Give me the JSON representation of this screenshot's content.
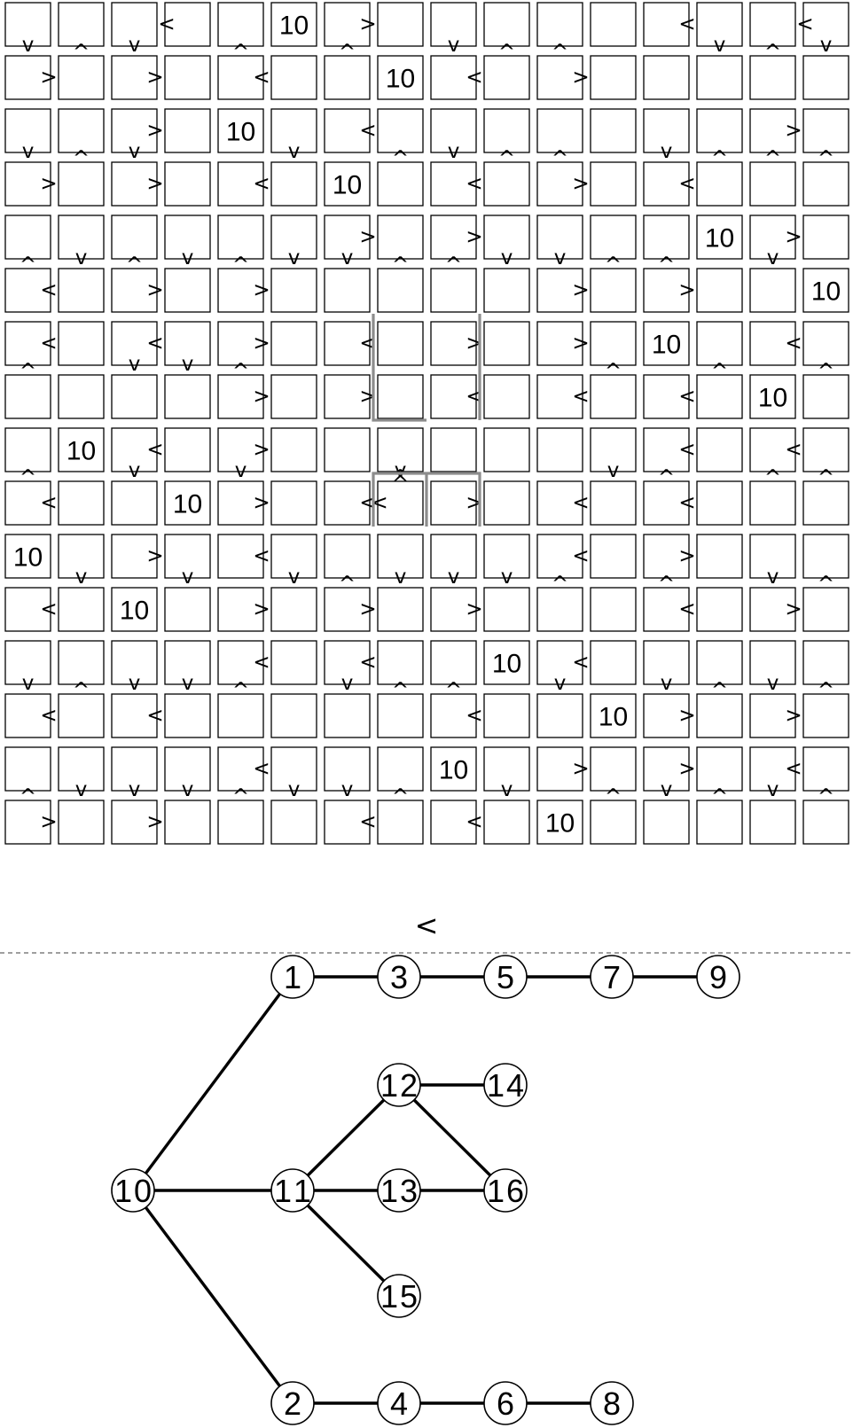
{
  "grid": {
    "rows": 16,
    "cols": 16,
    "cell_label": "10",
    "labeled_cells": [
      [
        0,
        5
      ],
      [
        1,
        7
      ],
      [
        2,
        4
      ],
      [
        3,
        6
      ],
      [
        4,
        13
      ],
      [
        5,
        15
      ],
      [
        6,
        12
      ],
      [
        7,
        14
      ],
      [
        8,
        1
      ],
      [
        9,
        3
      ],
      [
        10,
        0
      ],
      [
        11,
        2
      ],
      [
        12,
        9
      ],
      [
        13,
        11
      ],
      [
        14,
        8
      ],
      [
        15,
        10
      ]
    ],
    "arrows": [
      {
        "row": 0,
        "col": 0,
        "glyph": "v"
      },
      {
        "row": 1,
        "col": 0,
        "glyph": ">"
      },
      {
        "row": 0,
        "col": 1,
        "glyph": "^"
      },
      {
        "row": 0,
        "col": 2,
        "glyph": "v"
      },
      {
        "row": 1,
        "col": 2,
        "glyph": ">"
      },
      {
        "row": 0,
        "col": 3,
        "glyph": "<"
      },
      {
        "row": 0,
        "col": 4,
        "glyph": "^"
      },
      {
        "row": 1,
        "col": 4,
        "glyph": "<"
      },
      {
        "row": 0,
        "col": 6,
        "glyph": "^"
      },
      {
        "row": 0,
        "col": 6,
        "glyph": ">"
      },
      {
        "row": 0,
        "col": 8,
        "glyph": "v"
      },
      {
        "row": 1,
        "col": 8,
        "glyph": "<"
      },
      {
        "row": 0,
        "col": 9,
        "glyph": "^"
      },
      {
        "row": 0,
        "col": 10,
        "glyph": "^"
      },
      {
        "row": 1,
        "col": 10,
        "glyph": ">"
      },
      {
        "row": 0,
        "col": 12,
        "glyph": "<"
      },
      {
        "row": 0,
        "col": 13,
        "glyph": "v"
      },
      {
        "row": 0,
        "col": 14,
        "glyph": "^"
      },
      {
        "row": 0,
        "col": 15,
        "glyph": "<"
      },
      {
        "row": 0,
        "col": 15,
        "glyph": "v"
      },
      {
        "row": 2,
        "col": 0,
        "glyph": "v"
      },
      {
        "row": 3,
        "col": 0,
        "glyph": ">"
      },
      {
        "row": 2,
        "col": 1,
        "glyph": "^"
      },
      {
        "row": 2,
        "col": 2,
        "glyph": "v"
      },
      {
        "row": 2,
        "col": 2,
        "glyph": ">"
      },
      {
        "row": 3,
        "col": 2,
        "glyph": ">"
      },
      {
        "row": 2,
        "col": 5,
        "glyph": "v"
      },
      {
        "row": 3,
        "col": 4,
        "glyph": "<"
      },
      {
        "row": 2,
        "col": 6,
        "glyph": "<"
      },
      {
        "row": 2,
        "col": 7,
        "glyph": "^"
      },
      {
        "row": 2,
        "col": 8,
        "glyph": "v"
      },
      {
        "row": 3,
        "col": 8,
        "glyph": "<"
      },
      {
        "row": 2,
        "col": 9,
        "glyph": "^"
      },
      {
        "row": 2,
        "col": 10,
        "glyph": "^"
      },
      {
        "row": 3,
        "col": 10,
        "glyph": ">"
      },
      {
        "row": 2,
        "col": 12,
        "glyph": "v"
      },
      {
        "row": 3,
        "col": 12,
        "glyph": "<"
      },
      {
        "row": 2,
        "col": 13,
        "glyph": "^"
      },
      {
        "row": 2,
        "col": 14,
        "glyph": "^"
      },
      {
        "row": 2,
        "col": 14,
        "glyph": ">"
      },
      {
        "row": 2,
        "col": 15,
        "glyph": "^"
      },
      {
        "row": 4,
        "col": 0,
        "glyph": "^"
      },
      {
        "row": 5,
        "col": 0,
        "glyph": "<"
      },
      {
        "row": 4,
        "col": 1,
        "glyph": "v"
      },
      {
        "row": 4,
        "col": 2,
        "glyph": "^"
      },
      {
        "row": 5,
        "col": 2,
        "glyph": ">"
      },
      {
        "row": 4,
        "col": 3,
        "glyph": "v"
      },
      {
        "row": 4,
        "col": 4,
        "glyph": "^"
      },
      {
        "row": 5,
        "col": 4,
        "glyph": ">"
      },
      {
        "row": 4,
        "col": 5,
        "glyph": "v"
      },
      {
        "row": 4,
        "col": 6,
        "glyph": "v"
      },
      {
        "row": 4,
        "col": 6,
        "glyph": ">"
      },
      {
        "row": 4,
        "col": 7,
        "glyph": "^"
      },
      {
        "row": 4,
        "col": 8,
        "glyph": "^"
      },
      {
        "row": 4,
        "col": 8,
        "glyph": ">"
      },
      {
        "row": 4,
        "col": 9,
        "glyph": "v"
      },
      {
        "row": 4,
        "col": 10,
        "glyph": "v"
      },
      {
        "row": 5,
        "col": 10,
        "glyph": ">"
      },
      {
        "row": 4,
        "col": 11,
        "glyph": "^"
      },
      {
        "row": 4,
        "col": 12,
        "glyph": "^"
      },
      {
        "row": 5,
        "col": 12,
        "glyph": ">"
      },
      {
        "row": 4,
        "col": 14,
        "glyph": "v"
      },
      {
        "row": 4,
        "col": 14,
        "glyph": ">"
      },
      {
        "row": 6,
        "col": 0,
        "glyph": "^"
      },
      {
        "row": 6,
        "col": 0,
        "glyph": "<"
      },
      {
        "row": 6,
        "col": 2,
        "glyph": "v"
      },
      {
        "row": 6,
        "col": 2,
        "glyph": "<"
      },
      {
        "row": 6,
        "col": 3,
        "glyph": "v"
      },
      {
        "row": 6,
        "col": 4,
        "glyph": "^"
      },
      {
        "row": 6,
        "col": 4,
        "glyph": ">"
      },
      {
        "row": 7,
        "col": 4,
        "glyph": ">"
      },
      {
        "row": 6,
        "col": 6,
        "glyph": "<"
      },
      {
        "row": 7,
        "col": 6,
        "glyph": ">"
      },
      {
        "row": 6,
        "col": 8,
        "glyph": ">"
      },
      {
        "row": 7,
        "col": 8,
        "glyph": "<"
      },
      {
        "row": 6,
        "col": 10,
        "glyph": ">"
      },
      {
        "row": 7,
        "col": 10,
        "glyph": "<"
      },
      {
        "row": 6,
        "col": 11,
        "glyph": "^"
      },
      {
        "row": 7,
        "col": 12,
        "glyph": "<"
      },
      {
        "row": 6,
        "col": 13,
        "glyph": "^"
      },
      {
        "row": 6,
        "col": 14,
        "glyph": "<"
      },
      {
        "row": 6,
        "col": 15,
        "glyph": "^"
      },
      {
        "row": 8,
        "col": 0,
        "glyph": "^"
      },
      {
        "row": 9,
        "col": 0,
        "glyph": "<"
      },
      {
        "row": 8,
        "col": 2,
        "glyph": "v"
      },
      {
        "row": 8,
        "col": 2,
        "glyph": "<"
      },
      {
        "row": 8,
        "col": 4,
        "glyph": "v"
      },
      {
        "row": 8,
        "col": 4,
        "glyph": ">"
      },
      {
        "row": 9,
        "col": 4,
        "glyph": ">"
      },
      {
        "row": 8,
        "col": 7,
        "glyph": "^"
      },
      {
        "row": 8,
        "col": 7,
        "glyph": "v"
      },
      {
        "row": 9,
        "col": 6,
        "glyph": "<"
      },
      {
        "row": 9,
        "col": 7,
        "glyph": "<"
      },
      {
        "row": 9,
        "col": 7,
        "glyph": "^"
      },
      {
        "row": 9,
        "col": 8,
        "glyph": ">"
      },
      {
        "row": 9,
        "col": 10,
        "glyph": "<"
      },
      {
        "row": 8,
        "col": 11,
        "glyph": "v"
      },
      {
        "row": 8,
        "col": 12,
        "glyph": "^"
      },
      {
        "row": 8,
        "col": 12,
        "glyph": "<"
      },
      {
        "row": 9,
        "col": 12,
        "glyph": "<"
      },
      {
        "row": 8,
        "col": 14,
        "glyph": "^"
      },
      {
        "row": 8,
        "col": 14,
        "glyph": "<"
      },
      {
        "row": 8,
        "col": 15,
        "glyph": "^"
      },
      {
        "row": 10,
        "col": 1,
        "glyph": "v"
      },
      {
        "row": 11,
        "col": 0,
        "glyph": "<"
      },
      {
        "row": 10,
        "col": 2,
        "glyph": ">"
      },
      {
        "row": 10,
        "col": 3,
        "glyph": "v"
      },
      {
        "row": 10,
        "col": 4,
        "glyph": "<"
      },
      {
        "row": 10,
        "col": 5,
        "glyph": "v"
      },
      {
        "row": 11,
        "col": 4,
        "glyph": ">"
      },
      {
        "row": 10,
        "col": 6,
        "glyph": "^"
      },
      {
        "row": 10,
        "col": 7,
        "glyph": "v"
      },
      {
        "row": 11,
        "col": 6,
        "glyph": ">"
      },
      {
        "row": 10,
        "col": 8,
        "glyph": "v"
      },
      {
        "row": 10,
        "col": 9,
        "glyph": "v"
      },
      {
        "row": 11,
        "col": 8,
        "glyph": ">"
      },
      {
        "row": 10,
        "col": 10,
        "glyph": "^"
      },
      {
        "row": 10,
        "col": 10,
        "glyph": "<"
      },
      {
        "row": 10,
        "col": 12,
        "glyph": "^"
      },
      {
        "row": 10,
        "col": 12,
        "glyph": ">"
      },
      {
        "row": 11,
        "col": 12,
        "glyph": "<"
      },
      {
        "row": 10,
        "col": 14,
        "glyph": "v"
      },
      {
        "row": 10,
        "col": 15,
        "glyph": "^"
      },
      {
        "row": 11,
        "col": 14,
        "glyph": ">"
      },
      {
        "row": 12,
        "col": 0,
        "glyph": "v"
      },
      {
        "row": 13,
        "col": 0,
        "glyph": "<"
      },
      {
        "row": 12,
        "col": 1,
        "glyph": "^"
      },
      {
        "row": 12,
        "col": 2,
        "glyph": "v"
      },
      {
        "row": 13,
        "col": 2,
        "glyph": "<"
      },
      {
        "row": 12,
        "col": 3,
        "glyph": "v"
      },
      {
        "row": 12,
        "col": 4,
        "glyph": "^"
      },
      {
        "row": 12,
        "col": 4,
        "glyph": "<"
      },
      {
        "row": 12,
        "col": 6,
        "glyph": "v"
      },
      {
        "row": 12,
        "col": 6,
        "glyph": "<"
      },
      {
        "row": 12,
        "col": 7,
        "glyph": "^"
      },
      {
        "row": 12,
        "col": 8,
        "glyph": "^"
      },
      {
        "row": 13,
        "col": 8,
        "glyph": "<"
      },
      {
        "row": 12,
        "col": 10,
        "glyph": "v"
      },
      {
        "row": 12,
        "col": 10,
        "glyph": "<"
      },
      {
        "row": 12,
        "col": 12,
        "glyph": "v"
      },
      {
        "row": 13,
        "col": 12,
        "glyph": ">"
      },
      {
        "row": 12,
        "col": 13,
        "glyph": "^"
      },
      {
        "row": 12,
        "col": 14,
        "glyph": "v"
      },
      {
        "row": 13,
        "col": 14,
        "glyph": ">"
      },
      {
        "row": 12,
        "col": 15,
        "glyph": "^"
      },
      {
        "row": 14,
        "col": 0,
        "glyph": "^"
      },
      {
        "row": 15,
        "col": 0,
        "glyph": ">"
      },
      {
        "row": 14,
        "col": 1,
        "glyph": "v"
      },
      {
        "row": 14,
        "col": 2,
        "glyph": "v"
      },
      {
        "row": 15,
        "col": 2,
        "glyph": ">"
      },
      {
        "row": 14,
        "col": 3,
        "glyph": "v"
      },
      {
        "row": 14,
        "col": 4,
        "glyph": "^"
      },
      {
        "row": 14,
        "col": 4,
        "glyph": "<"
      },
      {
        "row": 14,
        "col": 5,
        "glyph": "v"
      },
      {
        "row": 14,
        "col": 6,
        "glyph": "v"
      },
      {
        "row": 15,
        "col": 6,
        "glyph": "<"
      },
      {
        "row": 14,
        "col": 7,
        "glyph": "^"
      },
      {
        "row": 14,
        "col": 9,
        "glyph": "v"
      },
      {
        "row": 15,
        "col": 8,
        "glyph": "<"
      },
      {
        "row": 14,
        "col": 10,
        "glyph": ">"
      },
      {
        "row": 14,
        "col": 11,
        "glyph": "^"
      },
      {
        "row": 14,
        "col": 12,
        "glyph": "v"
      },
      {
        "row": 14,
        "col": 12,
        "glyph": ">"
      },
      {
        "row": 14,
        "col": 13,
        "glyph": "^"
      },
      {
        "row": 14,
        "col": 14,
        "glyph": "v"
      },
      {
        "row": 14,
        "col": 14,
        "glyph": "<"
      },
      {
        "row": 14,
        "col": 15,
        "glyph": "^"
      }
    ]
  },
  "symbol": "<",
  "graph": {
    "nodes": [
      "1",
      "2",
      "3",
      "4",
      "5",
      "6",
      "7",
      "8",
      "9",
      "10",
      "11",
      "12",
      "13",
      "14",
      "15",
      "16"
    ],
    "edges": [
      [
        "1",
        "3"
      ],
      [
        "3",
        "5"
      ],
      [
        "5",
        "7"
      ],
      [
        "7",
        "9"
      ],
      [
        "2",
        "4"
      ],
      [
        "4",
        "6"
      ],
      [
        "6",
        "8"
      ],
      [
        "10",
        "1"
      ],
      [
        "10",
        "11"
      ],
      [
        "10",
        "2"
      ],
      [
        "11",
        "12"
      ],
      [
        "11",
        "13"
      ],
      [
        "11",
        "15"
      ],
      [
        "12",
        "14"
      ],
      [
        "12",
        "16"
      ],
      [
        "13",
        "16"
      ]
    ]
  }
}
